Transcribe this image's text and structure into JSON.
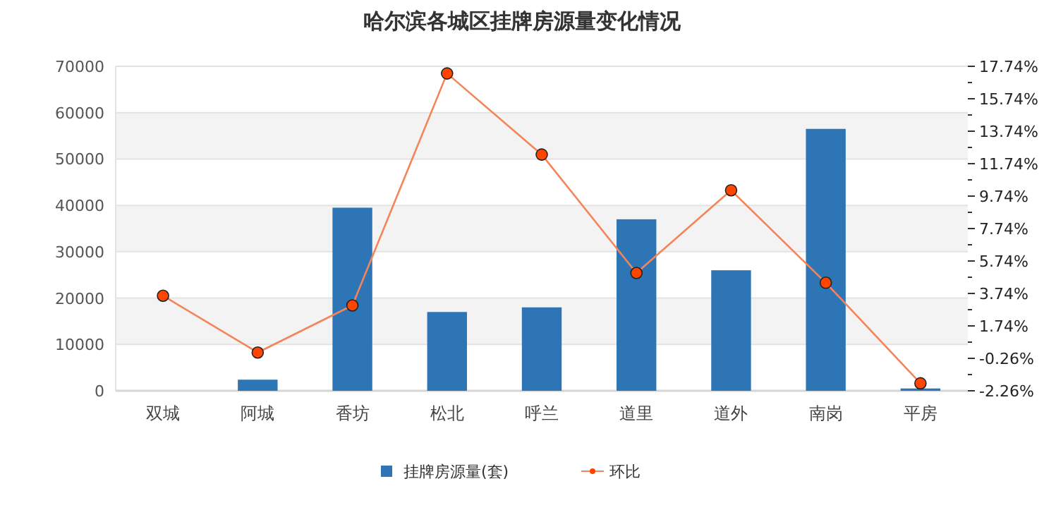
{
  "chart_data": {
    "type": "bar",
    "title": "哈尔滨各城区挂牌房源量变化情况",
    "categories": [
      "双城",
      "阿城",
      "香坊",
      "松北",
      "呼兰",
      "道里",
      "道外",
      "南岗",
      "平房"
    ],
    "series": [
      {
        "name": "挂牌房源量(套)",
        "color": "#2e75b6",
        "values": [
          0,
          2400,
          39500,
          17000,
          18000,
          37000,
          26000,
          56500,
          500
        ]
      },
      {
        "name": "环比",
        "type": "line",
        "axis": "y2",
        "color": "#f4845a",
        "marker": "circle",
        "values": [
          3.6,
          0.1,
          3.0,
          17.3,
          12.3,
          5.0,
          10.1,
          4.4,
          -1.8
        ]
      }
    ],
    "ylim": [
      0,
      70000
    ],
    "yticks": [
      0,
      10000,
      20000,
      30000,
      40000,
      50000,
      60000,
      70000
    ],
    "y2lim": [
      -2.26,
      17.74
    ],
    "y2ticks": [
      {
        "value": -2.26,
        "label": "-2.26%"
      },
      {
        "value": -1.26,
        "label": null
      },
      {
        "value": -0.26,
        "label": "-0.26%"
      },
      {
        "value": 0.74,
        "label": null
      },
      {
        "value": 1.74,
        "label": "1.74%"
      },
      {
        "value": 2.74,
        "label": null
      },
      {
        "value": 3.74,
        "label": "3.74%"
      },
      {
        "value": 4.74,
        "label": null
      },
      {
        "value": 5.74,
        "label": "5.74%"
      },
      {
        "value": 6.74,
        "label": null
      },
      {
        "value": 7.74,
        "label": "7.74%"
      },
      {
        "value": 8.74,
        "label": null
      },
      {
        "value": 9.74,
        "label": "9.74%"
      },
      {
        "value": 10.74,
        "label": null
      },
      {
        "value": 11.74,
        "label": "11.74%"
      },
      {
        "value": 12.74,
        "label": null
      },
      {
        "value": 13.74,
        "label": "13.74%"
      },
      {
        "value": 14.74,
        "label": null
      },
      {
        "value": 15.74,
        "label": "15.74%"
      },
      {
        "value": 16.74,
        "label": null
      },
      {
        "value": 17.74,
        "label": "17.74%"
      }
    ],
    "grid": "y",
    "legend": "bottom"
  }
}
